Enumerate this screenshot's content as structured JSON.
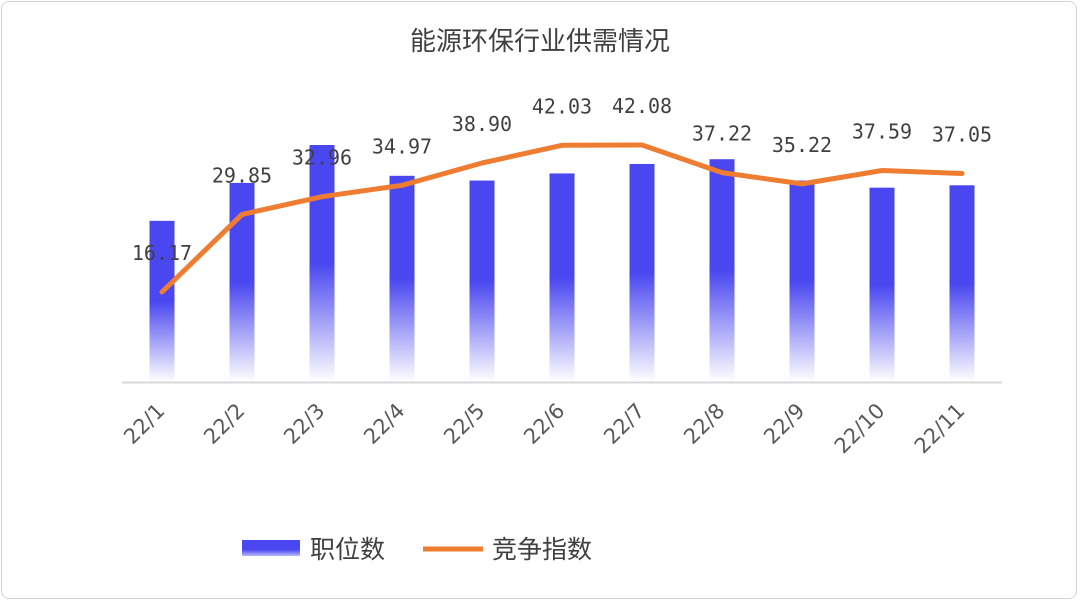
{
  "chart_data": {
    "type": "bar+line",
    "title": "能源环保行业供需情况",
    "categories": [
      "22/1",
      "22/2",
      "22/3",
      "22/4",
      "22/5",
      "22/6",
      "22/7",
      "22/8",
      "22/9",
      "22/10",
      "22/11"
    ],
    "series": [
      {
        "name": "职位数",
        "type": "bar",
        "color": "#4a47f0",
        "values": [
          0.68,
          0.84,
          1.0,
          0.87,
          0.85,
          0.88,
          0.92,
          0.94,
          0.85,
          0.82,
          0.83
        ]
      },
      {
        "name": "竞争指数",
        "type": "line",
        "color": "#ee7d31",
        "values": [
          16.17,
          29.85,
          32.96,
          34.97,
          38.9,
          42.03,
          42.08,
          37.22,
          35.22,
          37.59,
          37.05
        ],
        "labels": [
          "16.17",
          "29.85",
          "32.96",
          "34.97",
          "38.90",
          "42.03",
          "42.08",
          "37.22",
          "35.22",
          "37.59",
          "37.05"
        ]
      }
    ],
    "legend": "bottom",
    "grid": false
  }
}
